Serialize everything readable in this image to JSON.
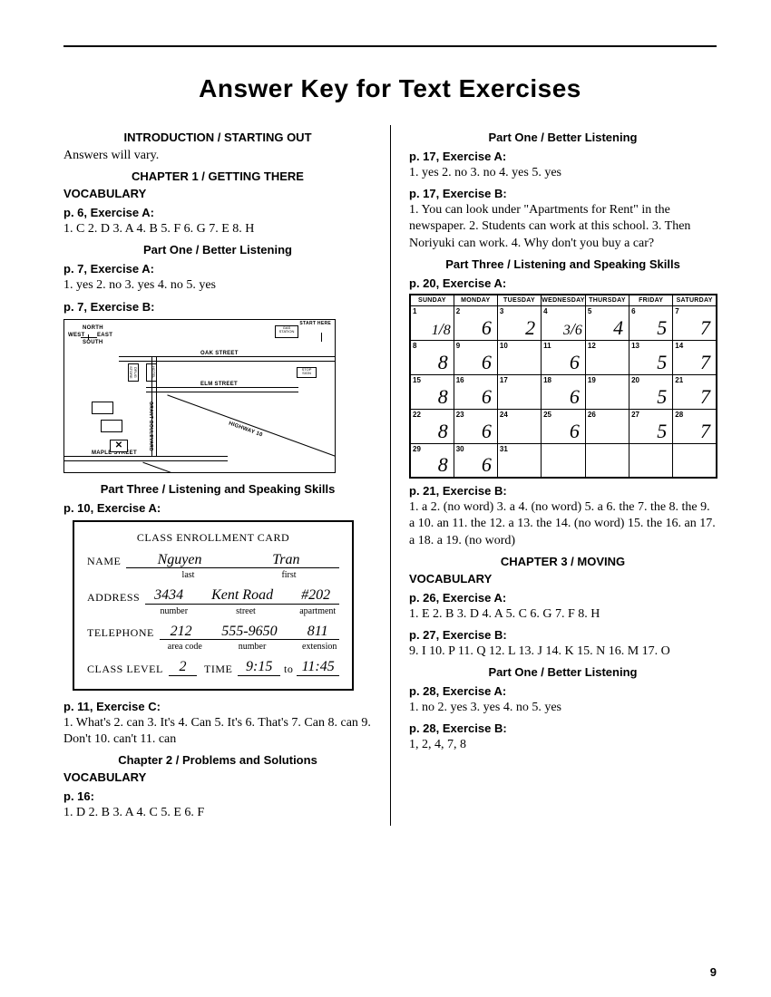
{
  "title": "Answer Key for Text Exercises",
  "pageNumber": "9",
  "left": {
    "intro": {
      "heading": "INTRODUCTION / STARTING OUT",
      "text": "Answers will vary."
    },
    "ch1": {
      "heading": "CHAPTER 1 / GETTING THERE",
      "vocab": "VOCABULARY",
      "exA": {
        "label": "p. 6, Exercise A:",
        "text": "1. C  2. D  3. A  4. B  5. F  6. G  7. E  8. H"
      },
      "part1": "Part One / Better Listening",
      "p7a": {
        "label": "p. 7, Exercise A:",
        "text": "1. yes  2. no  3. yes  4. no  5. yes"
      },
      "p7b": {
        "label": "p. 7, Exercise B:"
      },
      "map": {
        "north": "NORTH",
        "south": "SOUTH",
        "east": "EAST",
        "west": "WEST",
        "gas": "GAS STATION",
        "start": "START HERE",
        "oak": "OAK STREET",
        "elm": "ELM STREET",
        "stop": "STOP SIGN",
        "maple": "MAPLE STREET",
        "grant": "GRANT BOULEVARD",
        "hwy": "HIGHWAY 10",
        "drug": "DRUG STORE",
        "hotel": "HOTEL"
      },
      "part3": "Part Three / Listening and Speaking Skills",
      "p10a": {
        "label": "p. 10, Exercise A:"
      },
      "card": {
        "title": "CLASS ENROLLMENT CARD",
        "name_lbl": "NAME",
        "name_last": "Nguyen",
        "name_first": "Tran",
        "sub_last": "last",
        "sub_first": "first",
        "addr_lbl": "ADDRESS",
        "addr_num": "3434",
        "addr_street": "Kent Road",
        "addr_apt": "#202",
        "sub_number": "number",
        "sub_street": "street",
        "sub_apt": "apartment",
        "tel_lbl": "TELEPHONE",
        "tel_area": "212",
        "tel_num": "555-9650",
        "tel_ext": "811",
        "sub_area": "area code",
        "sub_tnum": "number",
        "sub_ext": "extension",
        "level_lbl": "CLASS LEVEL",
        "level": "2",
        "time_lbl": "TIME",
        "t1": "9:15",
        "to": "to",
        "t2": "11:45"
      },
      "p11c": {
        "label": "p. 11, Exercise C:",
        "text": "1. What's  2. can  3. It's  4. Can  5. It's  6. That's  7. Can  8. can  9. Don't  10. can't  11. can"
      }
    },
    "ch2": {
      "heading": "Chapter 2 / Problems and Solutions",
      "vocab": "VOCABULARY",
      "p16": {
        "label": "p. 16:",
        "text": "1. D  2. B  3. A  4. C  5. E  6. F"
      }
    }
  },
  "right": {
    "part1": "Part One / Better Listening",
    "p17a": {
      "label": "p. 17, Exercise A:",
      "text": "1. yes  2. no  3. no  4. yes  5. yes"
    },
    "p17b": {
      "label": "p. 17, Exercise B:",
      "text": "1. You can look under \"Apartments for Rent\" in the newspaper.  2. Students can work at this school.  3. Then Noriyuki can work.  4. Why don't you buy a car?"
    },
    "part3": "Part Three / Listening and Speaking Skills",
    "p20a": {
      "label": "p. 20, Exercise A:"
    },
    "calendar": {
      "days": [
        "SUNDAY",
        "MONDAY",
        "TUESDAY",
        "WEDNESDAY",
        "THURSDAY",
        "FRIDAY",
        "SATURDAY"
      ],
      "cells": [
        [
          {
            "n": "1",
            "v": "1/8"
          },
          {
            "n": "2",
            "v": "6"
          },
          {
            "n": "3",
            "v": "2"
          },
          {
            "n": "4",
            "v": "3/6"
          },
          {
            "n": "5",
            "v": "4"
          },
          {
            "n": "6",
            "v": "5"
          },
          {
            "n": "7",
            "v": "7"
          }
        ],
        [
          {
            "n": "8",
            "v": "8"
          },
          {
            "n": "9",
            "v": "6"
          },
          {
            "n": "10",
            "v": ""
          },
          {
            "n": "11",
            "v": "6"
          },
          {
            "n": "12",
            "v": ""
          },
          {
            "n": "13",
            "v": "5"
          },
          {
            "n": "14",
            "v": "7"
          }
        ],
        [
          {
            "n": "15",
            "v": "8"
          },
          {
            "n": "16",
            "v": "6"
          },
          {
            "n": "17",
            "v": ""
          },
          {
            "n": "18",
            "v": "6"
          },
          {
            "n": "19",
            "v": ""
          },
          {
            "n": "20",
            "v": "5"
          },
          {
            "n": "21",
            "v": "7"
          }
        ],
        [
          {
            "n": "22",
            "v": "8"
          },
          {
            "n": "23",
            "v": "6"
          },
          {
            "n": "24",
            "v": ""
          },
          {
            "n": "25",
            "v": "6"
          },
          {
            "n": "26",
            "v": ""
          },
          {
            "n": "27",
            "v": "5"
          },
          {
            "n": "28",
            "v": "7"
          }
        ],
        [
          {
            "n": "29",
            "v": "8"
          },
          {
            "n": "30",
            "v": "6"
          },
          {
            "n": "31",
            "v": ""
          },
          {
            "n": "",
            "v": ""
          },
          {
            "n": "",
            "v": ""
          },
          {
            "n": "",
            "v": ""
          },
          {
            "n": "",
            "v": ""
          }
        ]
      ]
    },
    "p21b": {
      "label": "p. 21, Exercise B:",
      "text": "1. a  2. (no word)  3. a  4. (no word)  5. a  6. the  7. the  8. the  9. a  10. an  11. the  12. a  13. the  14. (no word)  15. the  16. an  17. a  18. a  19. (no word)"
    },
    "ch3": {
      "heading": "CHAPTER 3 / MOVING",
      "vocab": "VOCABULARY",
      "p26a": {
        "label": "p. 26, Exercise A:",
        "text": "1. E  2. B  3. D  4. A  5. C  6. G  7. F  8. H"
      },
      "p27b": {
        "label": "p. 27, Exercise B:",
        "text": "9. I  10. P  11. Q  12. L  13. J  14. K  15. N  16. M  17. O"
      },
      "part1": "Part One / Better Listening",
      "p28a": {
        "label": "p. 28, Exercise A:",
        "text": "1. no  2. yes  3. yes  4. no  5. yes"
      },
      "p28b": {
        "label": "p. 28, Exercise B:",
        "text": "1, 2, 4, 7, 8"
      }
    }
  }
}
